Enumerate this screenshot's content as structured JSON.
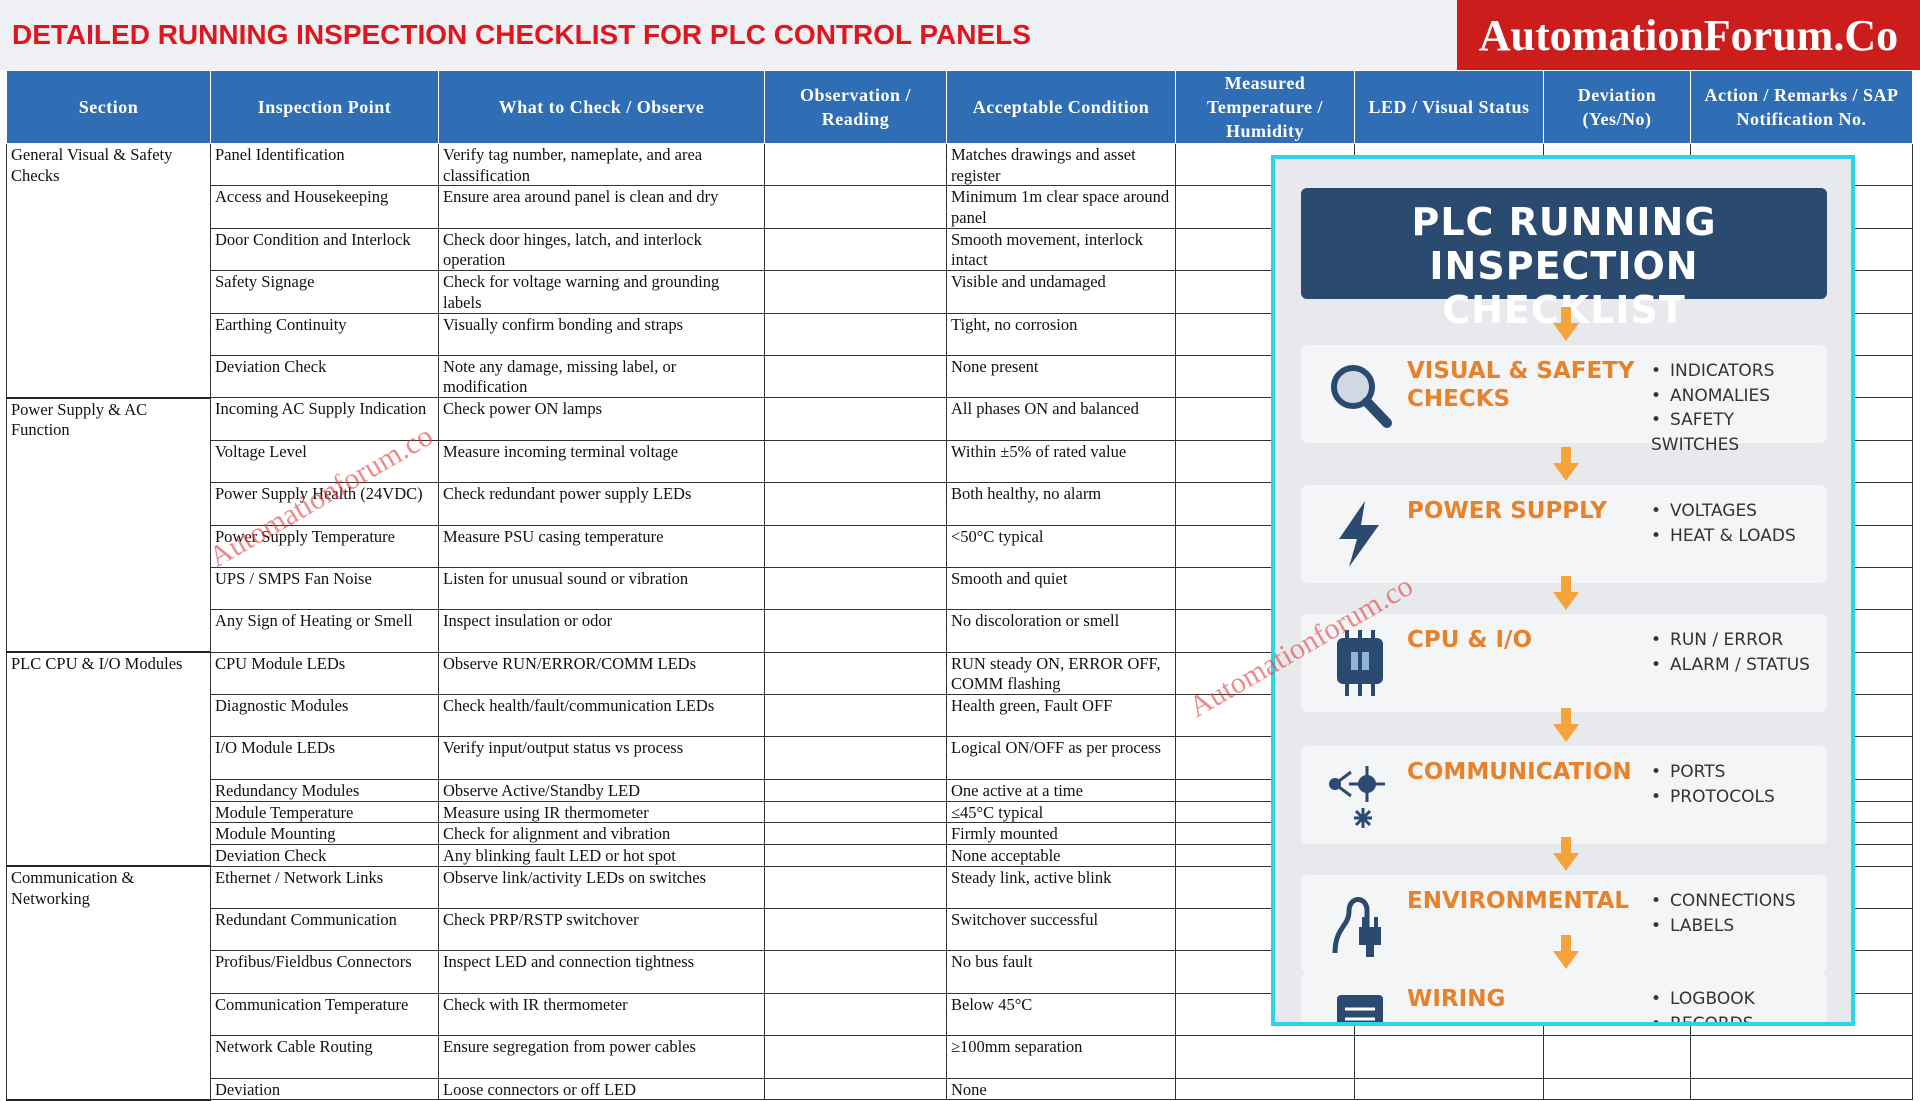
{
  "header": {
    "title": "DETAILED RUNNING INSPECTION CHECKLIST FOR PLC CONTROL PANELS",
    "brand": "AutomationForum.Co"
  },
  "table": {
    "columns": [
      "Section",
      "Inspection Point",
      "What to Check / Observe",
      "Observation / Reading",
      "Acceptable Condition",
      "Measured Temperature / Humidity",
      "LED / Visual Status",
      "Deviation (Yes/No)",
      "Action / Remarks / SAP Notification No."
    ],
    "sections": [
      {
        "name": "General Visual & Safety Checks",
        "rows": [
          [
            "Panel Identification",
            "Verify tag number, nameplate, and area classification",
            "Matches drawings and asset register"
          ],
          [
            "Access and Housekeeping",
            "Ensure area around panel is clean and dry",
            "Minimum 1m clear space around panel"
          ],
          [
            "Door Condition and Interlock",
            "Check door hinges, latch, and interlock operation",
            "Smooth movement, interlock intact"
          ],
          [
            "Safety Signage",
            "Check for voltage warning and grounding labels",
            "Visible and undamaged"
          ],
          [
            "Earthing Continuity",
            "Visually confirm bonding and straps",
            "Tight, no corrosion"
          ],
          [
            "Deviation Check",
            "Note any damage, missing label, or modification",
            "None present"
          ]
        ]
      },
      {
        "name": "Power Supply & AC Function",
        "rows": [
          [
            "Incoming AC Supply Indication",
            "Check power ON lamps",
            "All phases ON and balanced"
          ],
          [
            "Voltage Level",
            "Measure incoming terminal voltage",
            "Within ±5% of rated value"
          ],
          [
            "Power Supply Health (24VDC)",
            "Check redundant power supply LEDs",
            "Both healthy, no alarm"
          ],
          [
            "Power Supply Temperature",
            "Measure PSU casing temperature",
            "<50°C typical"
          ],
          [
            "UPS / SMPS Fan Noise",
            "Listen for unusual sound or vibration",
            "Smooth and quiet"
          ],
          [
            "Any Sign of Heating or Smell",
            "Inspect insulation or odor",
            "No discoloration or smell"
          ]
        ]
      },
      {
        "name": "PLC CPU & I/O Modules",
        "rows": [
          [
            "CPU Module LEDs",
            "Observe RUN/ERROR/COMM LEDs",
            "RUN steady ON, ERROR OFF, COMM flashing"
          ],
          [
            "Diagnostic Modules",
            "Check health/fault/communication LEDs",
            "Health green, Fault OFF"
          ],
          [
            "I/O Module LEDs",
            "Verify input/output status vs process",
            "Logical ON/OFF as per process"
          ],
          [
            "Redundancy Modules",
            "Observe Active/Standby LED",
            "One active at a time"
          ],
          [
            "Module Temperature",
            "Measure using IR thermometer",
            "≤45°C typical"
          ],
          [
            "Module Mounting",
            "Check for alignment and vibration",
            "Firmly mounted"
          ],
          [
            "Deviation Check",
            "Any blinking fault LED or hot spot",
            "None acceptable"
          ]
        ]
      },
      {
        "name": "Communication & Networking",
        "rows": [
          [
            "Ethernet / Network Links",
            "Observe link/activity LEDs on switches",
            "Steady link, active blink"
          ],
          [
            "Redundant Communication",
            "Check PRP/RSTP switchover",
            "Switchover successful"
          ],
          [
            "Profibus/Fieldbus Connectors",
            "Inspect LED and connection tightness",
            "No bus fault"
          ],
          [
            "Communication Temperature",
            "Check with IR thermometer",
            "Below 45°C"
          ],
          [
            "Network Cable Routing",
            "Ensure segregation from power cables",
            "≥100mm separation"
          ],
          [
            "Deviation",
            "Loose connectors or off LED",
            "None"
          ]
        ]
      }
    ]
  },
  "watermarks": [
    "Automationforum.co",
    "Automationforum.co"
  ],
  "panel": {
    "title": "PLC RUNNING INSPECTION CHECKLIST",
    "items": [
      {
        "heading": "VISUAL & SAFETY CHECKS",
        "bullets": [
          "INDICATORS",
          "ANOMALIES",
          "SAFETY SWITCHES"
        ]
      },
      {
        "heading": "POWER SUPPLY",
        "bullets": [
          "VOLTAGES",
          "HEAT & LOADS"
        ]
      },
      {
        "heading": "CPU & I/O",
        "bullets": [
          "RUN / ERROR",
          "ALARM / STATUS"
        ]
      },
      {
        "heading": "COMMUNICATION",
        "bullets": [
          "PORTS",
          "PROTOCOLS"
        ]
      },
      {
        "heading": "ENVIRONMENTAL",
        "bullets": [
          "CONNECTIONS",
          "LABELS"
        ]
      },
      {
        "heading": "WIRING",
        "bullets": [
          "LOGBOOK",
          "RECORDS"
        ]
      }
    ]
  }
}
